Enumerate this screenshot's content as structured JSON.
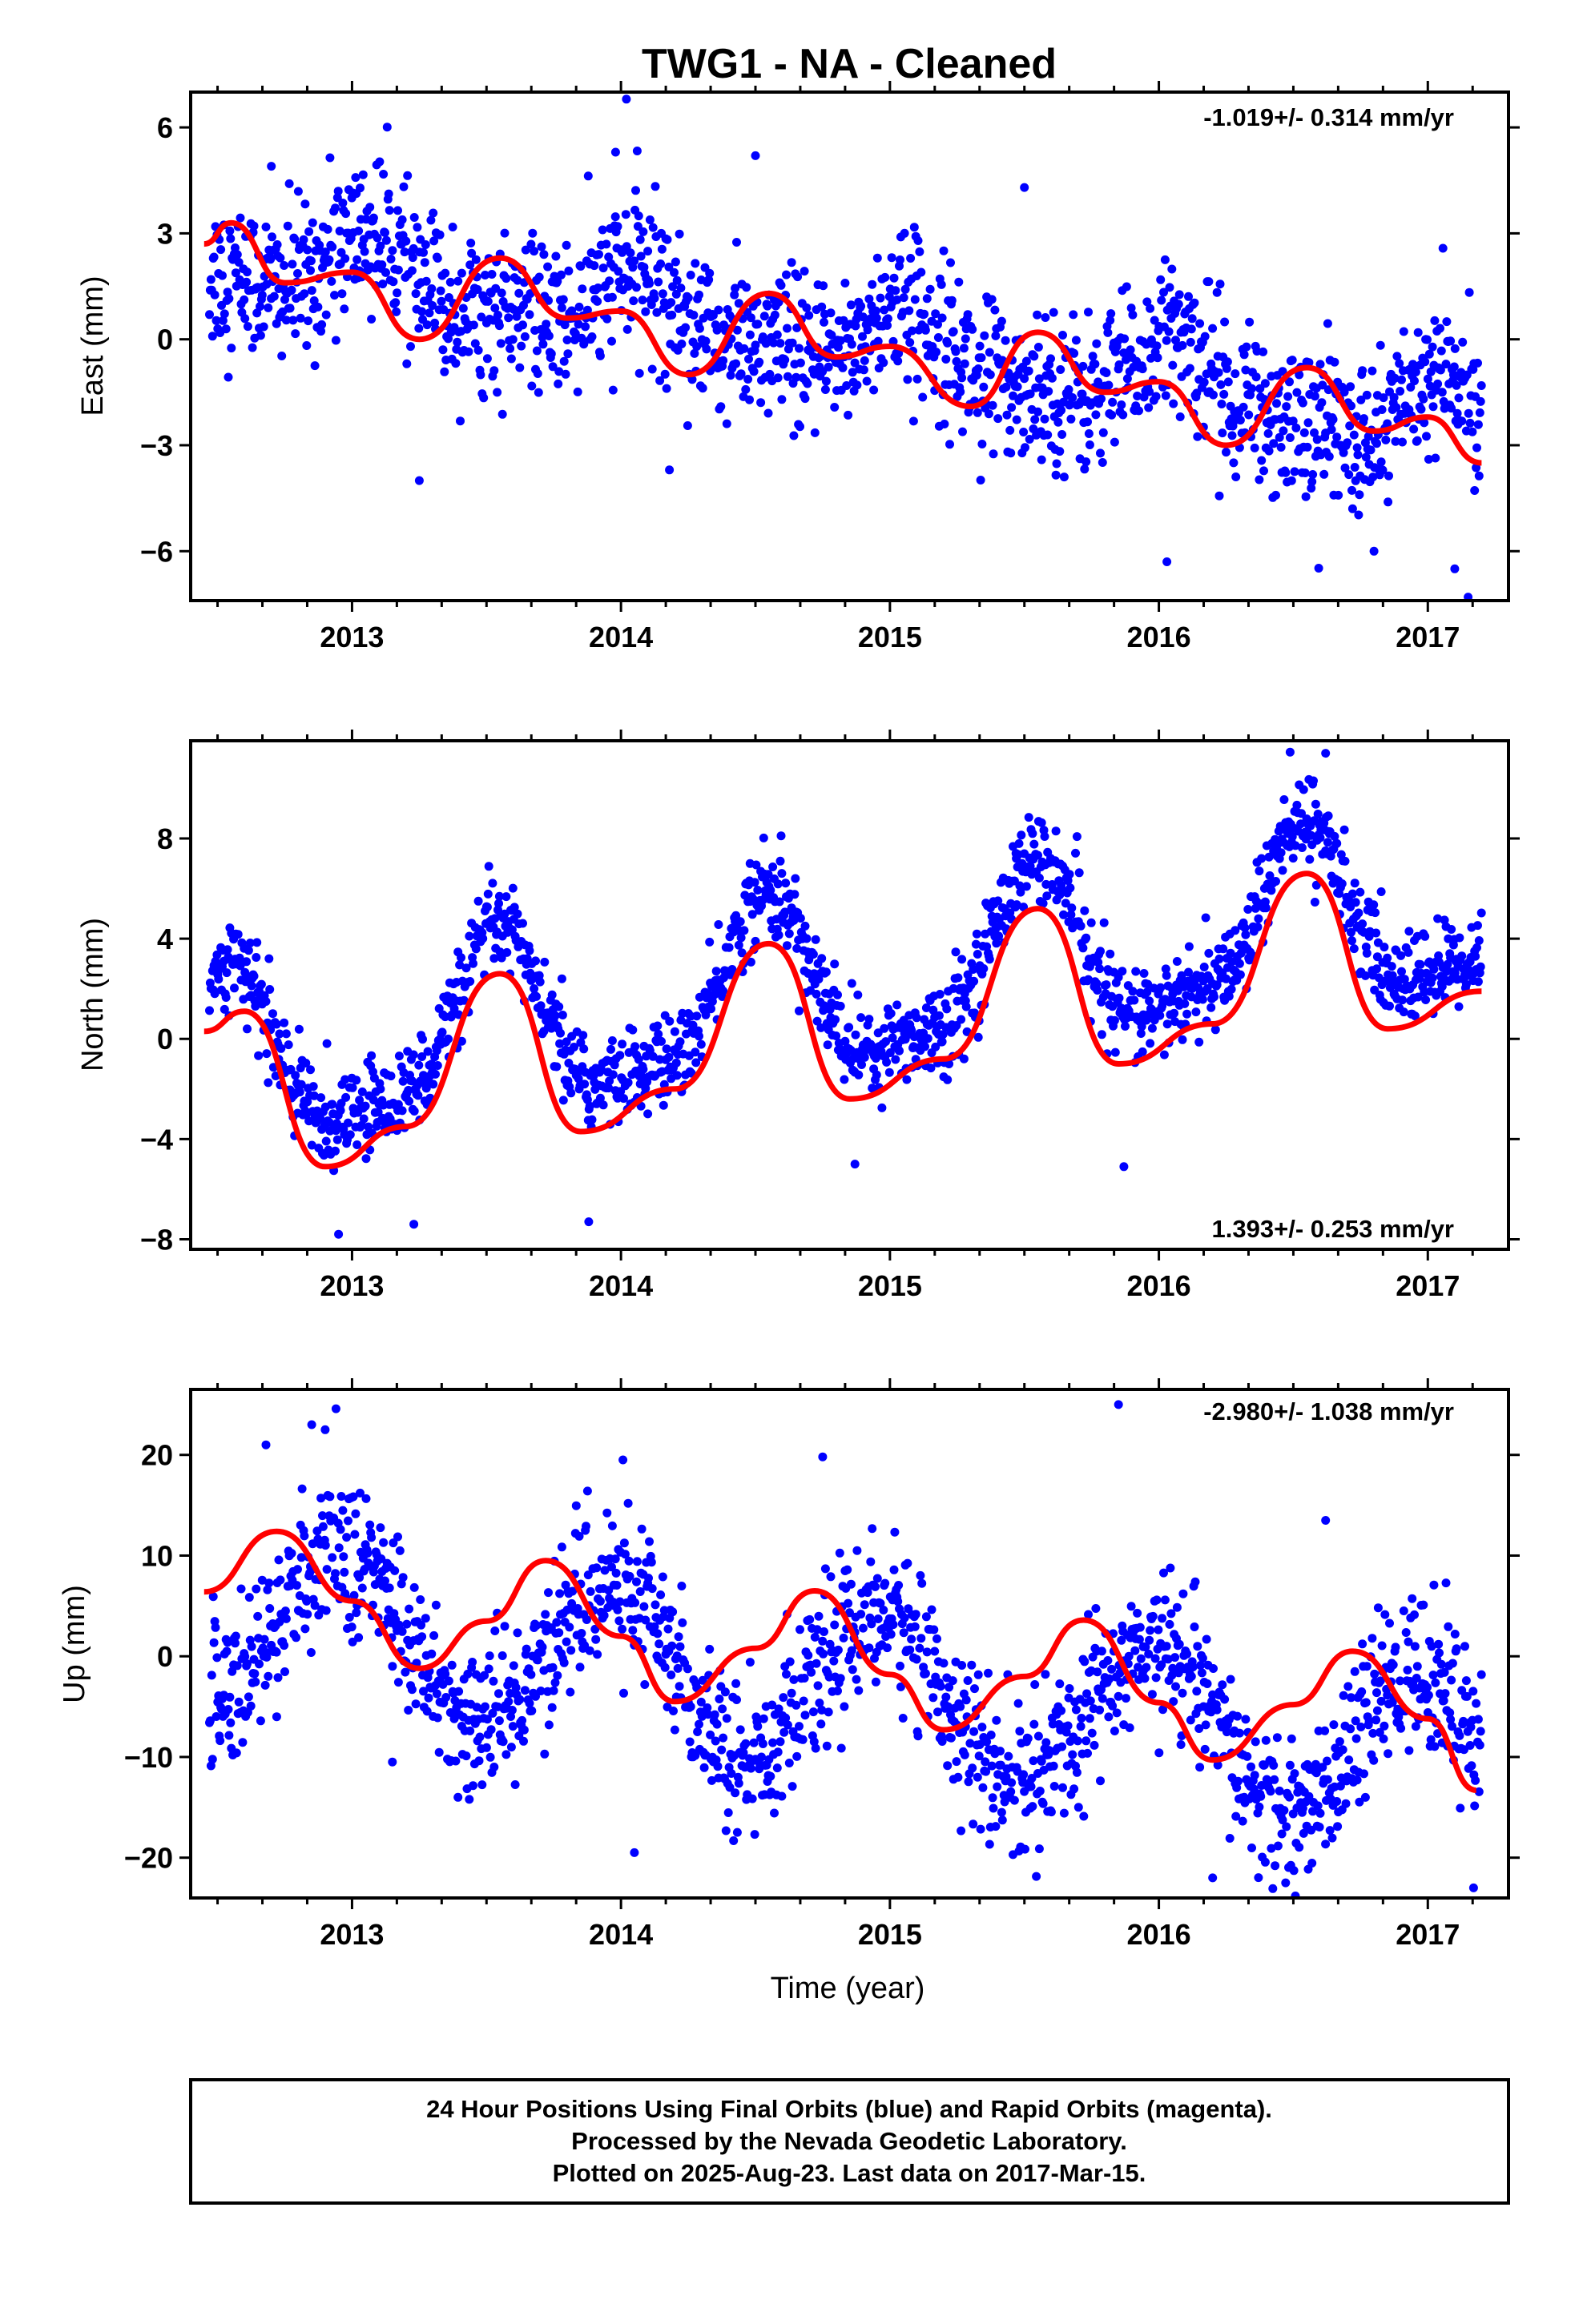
{
  "title": "TWG1  - NA - Cleaned",
  "xlabel": "Time (year)",
  "footer": {
    "line1": "24 Hour Positions Using Final Orbits (blue) and Rapid Orbits (magenta).",
    "line2": "Processed by the Nevada Geodetic Laboratory.",
    "line3": "Plotted on 2025-Aug-23. Last data on 2017-Mar-15."
  },
  "colors": {
    "points": "#0000ff",
    "fit": "#ff0000",
    "frame": "#000000"
  },
  "chart_data": [
    {
      "type": "scatter",
      "panel": "east",
      "ylabel": "East (mm)",
      "rate_label": "-1.019+/- 0.314 mm/yr",
      "rate_position": "top-right",
      "xlim": [
        2012.4,
        2017.3
      ],
      "ylim": [
        -7.4,
        7.0
      ],
      "xticks": [
        2013,
        2014,
        2015,
        2016,
        2017
      ],
      "yticks": [
        6,
        3,
        0,
        -3,
        -6
      ],
      "model": {
        "t0": 2012.45,
        "offset": 2.4,
        "trend": -1.019,
        "harmonics": [
          {
            "period": 1.0,
            "amp": 0.85,
            "phase": 0.62
          },
          {
            "period": 0.5,
            "amp": 0.35,
            "phase": 0.22
          }
        ]
      },
      "scatter_sd": 1.1,
      "fit": {
        "x": [
          2012.45,
          2012.55,
          2012.75,
          2013.0,
          2013.25,
          2013.55,
          2013.8,
          2014.0,
          2014.25,
          2014.55,
          2014.8,
          2015.0,
          2015.3,
          2015.55,
          2015.8,
          2016.0,
          2016.25,
          2016.55,
          2016.8,
          2017.0,
          2017.2
        ],
        "y": [
          2.7,
          3.3,
          1.6,
          1.9,
          0.0,
          2.3,
          0.6,
          0.8,
          -1.0,
          1.3,
          -0.5,
          -0.2,
          -1.9,
          0.2,
          -1.5,
          -1.2,
          -3.0,
          -0.8,
          -2.6,
          -2.2,
          -3.5
        ]
      },
      "outliers": {
        "x": [
          2014.02,
          2013.98,
          2012.7,
          2013.25,
          2014.18,
          2014.5,
          2015.5,
          2016.03,
          2016.8,
          2017.15,
          2017.1
        ],
        "y": [
          6.8,
          5.3,
          4.9,
          -4.0,
          -3.7,
          5.2,
          4.3,
          -6.3,
          -6.0,
          -7.3,
          -6.5
        ]
      }
    },
    {
      "type": "scatter",
      "panel": "north",
      "ylabel": "North (mm)",
      "rate_label": "1.393+/- 0.253 mm/yr",
      "rate_position": "bottom-right",
      "xlim": [
        2012.4,
        2017.3
      ],
      "ylim": [
        -8.4,
        11.9
      ],
      "xticks": [
        2013,
        2014,
        2015,
        2016,
        2017
      ],
      "yticks": [
        8,
        4,
        0,
        -4,
        -8
      ],
      "model": {
        "t0": 2012.45,
        "offset": -1.3,
        "trend": 1.393,
        "harmonics": [
          {
            "period": 1.0,
            "amp": 3.3,
            "phase": 0.08
          },
          {
            "period": 0.5,
            "amp": 1.0,
            "phase": 0.2
          }
        ]
      },
      "scatter_sd": 0.9,
      "fit": {
        "x": [
          2012.45,
          2012.6,
          2012.9,
          2013.2,
          2013.55,
          2013.85,
          2014.2,
          2014.55,
          2014.85,
          2015.2,
          2015.55,
          2015.85,
          2016.2,
          2016.55,
          2016.85,
          2017.2
        ],
        "y": [
          0.3,
          1.1,
          -5.1,
          -3.5,
          2.6,
          -3.7,
          -2.0,
          3.8,
          -2.4,
          -0.8,
          5.2,
          -1.0,
          0.6,
          6.6,
          0.4,
          1.9
        ]
      },
      "outliers": {
        "x": [
          2012.95,
          2013.23,
          2013.88,
          2014.48,
          2015.47,
          2016.62,
          2016.63,
          2015.87,
          2014.87
        ],
        "y": [
          -7.8,
          -7.4,
          -7.3,
          7.0,
          7.2,
          11.4,
          8.9,
          -5.1,
          -5.0
        ]
      }
    },
    {
      "type": "scatter",
      "panel": "up",
      "ylabel": "Up (mm)",
      "rate_label": "-2.980+/- 1.038 mm/yr",
      "rate_position": "top-right",
      "xlim": [
        2012.4,
        2017.3
      ],
      "ylim": [
        -24,
        26.5
      ],
      "xticks": [
        2013,
        2014,
        2015,
        2016,
        2017
      ],
      "yticks": [
        20,
        10,
        0,
        -10,
        -20
      ],
      "model": {
        "t0": 2012.45,
        "offset": 4.0,
        "trend": -2.98,
        "harmonics": [
          {
            "period": 1.0,
            "amp": 7.8,
            "phase": 0.52
          }
        ]
      },
      "scatter_sd": 3.8,
      "fit": {
        "x": [
          2012.45,
          2012.72,
          2013.0,
          2013.25,
          2013.5,
          2013.72,
          2014.0,
          2014.2,
          2014.5,
          2014.72,
          2015.0,
          2015.2,
          2015.5,
          2015.72,
          2016.0,
          2016.2,
          2016.5,
          2016.72,
          2017.0,
          2017.18
        ],
        "y": [
          6.4,
          12.4,
          5.5,
          -1.2,
          3.5,
          9.5,
          2.0,
          -4.5,
          0.8,
          6.5,
          -1.8,
          -7.3,
          -2.0,
          3.6,
          -4.6,
          -10.3,
          -4.8,
          0.5,
          -6.2,
          -13.3
        ]
      },
      "outliers": {
        "x": [
          2015.85,
          2012.85,
          2012.9,
          2012.68,
          2014.75,
          2016.2,
          2017.17,
          2014.05,
          2016.62,
          2012.72,
          2013.15
        ],
        "y": [
          25.0,
          23.0,
          22.5,
          21.0,
          19.8,
          -22.0,
          -23.0,
          -19.5,
          13.5,
          -6.0,
          -10.5
        ]
      }
    }
  ]
}
